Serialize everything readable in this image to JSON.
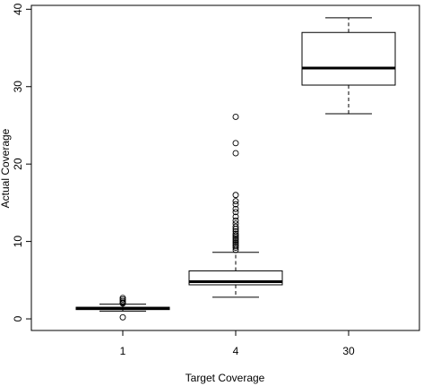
{
  "chart_data": {
    "type": "boxplot",
    "xlabel": "Target Coverage",
    "ylabel": "Actual Coverage",
    "categories": [
      "1",
      "4",
      "30"
    ],
    "ylim": [
      -1.5,
      40.5
    ],
    "yticks": [
      0,
      10,
      20,
      30,
      40
    ],
    "grid": false,
    "legend": "none",
    "boxes": [
      {
        "category": "1",
        "whisker_low": 1.0,
        "q1": 1.2,
        "median": 1.35,
        "q3": 1.5,
        "whisker_high": 1.9,
        "outliers": [
          0.2,
          2.0,
          2.1,
          2.3,
          2.5,
          2.7
        ]
      },
      {
        "category": "4",
        "whisker_low": 2.8,
        "q1": 4.4,
        "median": 4.8,
        "q3": 6.2,
        "whisker_high": 8.6,
        "outliers": [
          8.9,
          9.2,
          9.4,
          9.6,
          9.8,
          10.0,
          10.2,
          10.4,
          10.6,
          10.8,
          11.0,
          11.3,
          11.6,
          11.9,
          12.3,
          12.7,
          13.2,
          13.8,
          14.2,
          14.8,
          15.2,
          16.0,
          21.4,
          22.7,
          26.1
        ]
      },
      {
        "category": "30",
        "whisker_low": 26.5,
        "q1": 30.2,
        "median": 32.4,
        "q3": 37.0,
        "whisker_high": 38.9,
        "outliers": []
      }
    ]
  }
}
